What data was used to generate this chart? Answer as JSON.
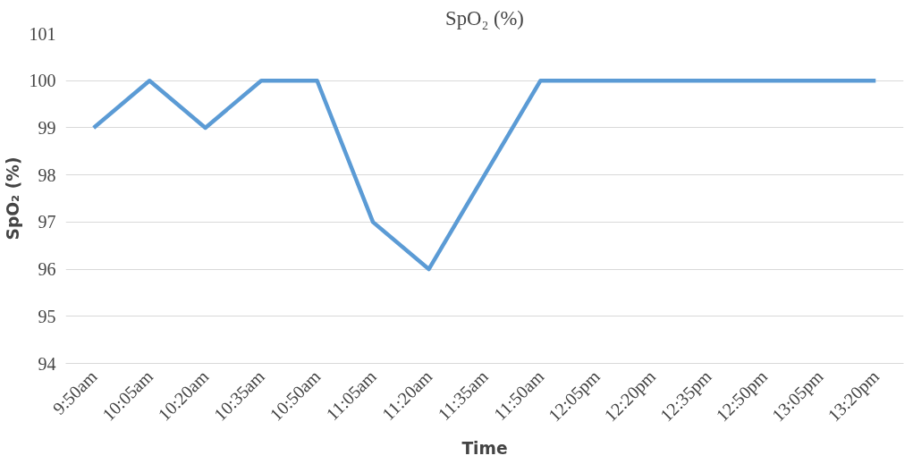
{
  "chart_data": {
    "type": "line",
    "title": "SpO₂ (%)",
    "xlabel": "Time",
    "ylabel": "SpO₂ (%)",
    "categories": [
      "9:50am",
      "10:05am",
      "10:20am",
      "10:35am",
      "10:50am",
      "11:05am",
      "11:20am",
      "11:35am",
      "11:50am",
      "12:05pm",
      "12:20pm",
      "12:35pm",
      "12:50pm",
      "13:05pm",
      "13:20pm"
    ],
    "series": [
      {
        "color": "#5b9bd5",
        "values": [
          99,
          100,
          99,
          100,
          100,
          97,
          96,
          98,
          100,
          100,
          100,
          100,
          100,
          100,
          100
        ]
      }
    ],
    "ylim": [
      94,
      101
    ],
    "yticks": [
      94,
      95,
      96,
      97,
      98,
      99,
      100,
      101
    ],
    "grid": "y",
    "marker": "none",
    "line_style": "solid"
  }
}
